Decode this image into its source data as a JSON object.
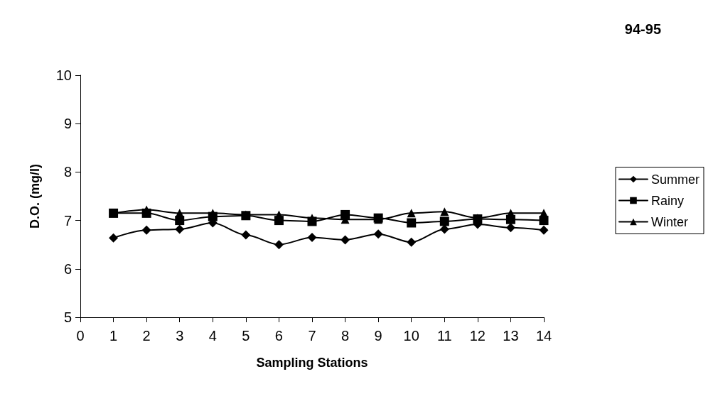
{
  "chart_data": {
    "type": "line",
    "title": "94-95",
    "xlabel": "Sampling Stations",
    "ylabel": "D.O. (mg/l)",
    "x": [
      1,
      2,
      3,
      4,
      5,
      6,
      7,
      8,
      9,
      10,
      11,
      12,
      13,
      14
    ],
    "xlim": [
      0,
      14
    ],
    "xticks": [
      0,
      1,
      2,
      3,
      4,
      5,
      6,
      7,
      8,
      9,
      10,
      11,
      12,
      13,
      14
    ],
    "ylim": [
      5,
      10
    ],
    "yticks": [
      5,
      6,
      7,
      8,
      9,
      10
    ],
    "grid": false,
    "legend": "right",
    "line_style": "solid",
    "series": [
      {
        "name": "Summer",
        "color": "#000000",
        "marker": "diamond",
        "values": [
          6.64,
          6.8,
          6.82,
          6.95,
          6.7,
          6.5,
          6.65,
          6.6,
          6.72,
          6.55,
          6.82,
          6.92,
          6.85,
          6.8
        ]
      },
      {
        "name": "Rainy",
        "color": "#000000",
        "marker": "square",
        "values": [
          7.15,
          7.15,
          7.0,
          7.08,
          7.1,
          7.0,
          6.98,
          7.12,
          7.05,
          6.95,
          6.98,
          7.03,
          7.02,
          7.0
        ]
      },
      {
        "name": "Winter",
        "color": "#000000",
        "marker": "triangle",
        "values": [
          7.15,
          7.22,
          7.15,
          7.15,
          7.12,
          7.12,
          7.05,
          7.02,
          7.02,
          7.15,
          7.18,
          7.05,
          7.15,
          7.15
        ]
      }
    ]
  }
}
